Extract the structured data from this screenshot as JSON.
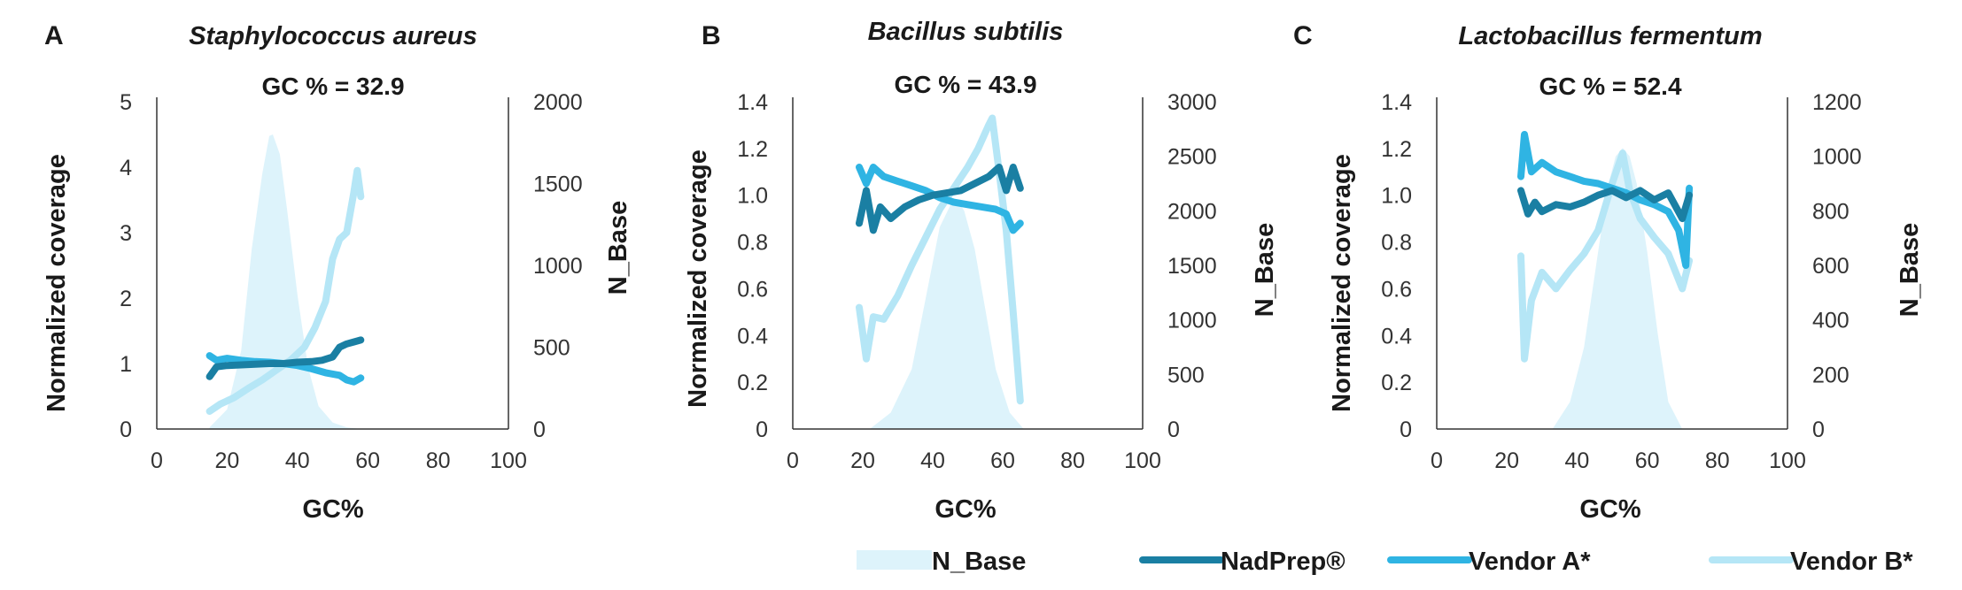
{
  "colors": {
    "n_base": "#ddf3fb",
    "nadprep": "#1a7fa3",
    "vendor_a": "#2fb4e3",
    "vendor_b": "#b5e6f6",
    "axis": "#333333"
  },
  "legend": [
    {
      "key": "n_base",
      "label": "N_Base",
      "style": "area"
    },
    {
      "key": "nadprep",
      "label": "NadPrep®",
      "style": "line"
    },
    {
      "key": "vendor_a",
      "label": "Vendor A*",
      "style": "line"
    },
    {
      "key": "vendor_b",
      "label": "Vendor B*",
      "style": "line"
    }
  ],
  "chart_data": [
    {
      "type": "line",
      "panel_letter": "A",
      "title": "Staphylococcus aureus",
      "subtitle": "GC % = 32.9",
      "xlabel": "GC%",
      "ylabel": "Normalized coverage",
      "y2label": "N_Base",
      "xlim": [
        0,
        100
      ],
      "xticks": [
        "0",
        "20",
        "40",
        "60",
        "80",
        "100"
      ],
      "ylim": [
        0,
        5
      ],
      "yticks": [
        "0",
        "1",
        "2",
        "3",
        "4",
        "5"
      ],
      "y2lim": [
        0,
        2000
      ],
      "y2ticks": [
        "0",
        "500",
        "1000",
        "1500",
        "2000"
      ],
      "grid": false,
      "series": [
        {
          "name": "N_Base",
          "axis": "right",
          "style": "area",
          "x": [
            15,
            20,
            24,
            27,
            30,
            32,
            33,
            35,
            37,
            40,
            43,
            46,
            50,
            54,
            58
          ],
          "y": [
            10,
            120,
            480,
            1100,
            1560,
            1790,
            1800,
            1680,
            1350,
            820,
            380,
            140,
            40,
            10,
            0
          ]
        },
        {
          "name": "NadPrep®",
          "axis": "left",
          "style": "line",
          "x": [
            15,
            17,
            20,
            24,
            28,
            32,
            36,
            40,
            44,
            47,
            50,
            52,
            54,
            56,
            58
          ],
          "y": [
            0.8,
            0.95,
            0.97,
            0.98,
            0.99,
            1.0,
            1.0,
            1.02,
            1.03,
            1.05,
            1.1,
            1.25,
            1.3,
            1.33,
            1.36
          ]
        },
        {
          "name": "Vendor A*",
          "axis": "left",
          "style": "line",
          "x": [
            15,
            17,
            20,
            24,
            28,
            32,
            36,
            40,
            44,
            48,
            52,
            54,
            56,
            58
          ],
          "y": [
            1.12,
            1.05,
            1.08,
            1.05,
            1.03,
            1.02,
            1.0,
            0.97,
            0.92,
            0.86,
            0.82,
            0.75,
            0.72,
            0.78
          ]
        },
        {
          "name": "Vendor B*",
          "axis": "left",
          "style": "line",
          "x": [
            15,
            18,
            22,
            26,
            30,
            34,
            38,
            42,
            45,
            48,
            50,
            52,
            54,
            56,
            57,
            58
          ],
          "y": [
            0.27,
            0.38,
            0.48,
            0.62,
            0.75,
            0.9,
            1.05,
            1.25,
            1.55,
            1.95,
            2.6,
            2.9,
            3.0,
            3.6,
            3.95,
            3.55
          ]
        }
      ]
    },
    {
      "type": "line",
      "panel_letter": "B",
      "title": "Bacillus subtilis",
      "subtitle": "GC % = 43.9",
      "xlabel": "GC%",
      "ylabel": "Normalized coverage",
      "y2label": "N_Base",
      "xlim": [
        0,
        100
      ],
      "xticks": [
        "0",
        "20",
        "40",
        "60",
        "80",
        "100"
      ],
      "ylim": [
        0,
        1.4
      ],
      "yticks": [
        "0",
        "0.2",
        "0.4",
        "0.6",
        "0.8",
        "1.0",
        "1.2",
        "1.4"
      ],
      "y2lim": [
        0,
        3000
      ],
      "y2ticks": [
        "0",
        "500",
        "1000",
        "1500",
        "2000",
        "2500",
        "3000"
      ],
      "grid": false,
      "series": [
        {
          "name": "N_Base",
          "axis": "right",
          "style": "area",
          "x": [
            22,
            28,
            34,
            38,
            42,
            45,
            47,
            49,
            52,
            55,
            58,
            62,
            66
          ],
          "y": [
            0,
            150,
            550,
            1200,
            1850,
            2050,
            2100,
            2000,
            1650,
            1100,
            550,
            150,
            0
          ]
        },
        {
          "name": "NadPrep®",
          "axis": "left",
          "style": "line",
          "x": [
            19,
            21,
            23,
            25,
            28,
            32,
            36,
            40,
            44,
            48,
            52,
            56,
            59,
            61,
            63,
            65
          ],
          "y": [
            0.88,
            1.02,
            0.85,
            0.95,
            0.9,
            0.95,
            0.98,
            1.0,
            1.01,
            1.02,
            1.05,
            1.08,
            1.12,
            1.02,
            1.12,
            1.03
          ]
        },
        {
          "name": "Vendor A*",
          "axis": "left",
          "style": "line",
          "x": [
            19,
            21,
            23,
            26,
            30,
            34,
            38,
            42,
            46,
            50,
            54,
            58,
            61,
            63,
            65
          ],
          "y": [
            1.12,
            1.05,
            1.12,
            1.08,
            1.06,
            1.04,
            1.02,
            0.99,
            0.97,
            0.96,
            0.95,
            0.94,
            0.92,
            0.85,
            0.88
          ]
        },
        {
          "name": "Vendor B*",
          "axis": "left",
          "style": "line",
          "x": [
            19,
            21,
            23,
            26,
            30,
            34,
            38,
            42,
            46,
            50,
            53,
            56,
            57,
            59,
            61,
            63,
            65
          ],
          "y": [
            0.52,
            0.3,
            0.48,
            0.47,
            0.57,
            0.7,
            0.82,
            0.94,
            1.03,
            1.12,
            1.2,
            1.3,
            1.33,
            1.1,
            0.85,
            0.5,
            0.12
          ]
        }
      ]
    },
    {
      "type": "line",
      "panel_letter": "C",
      "title": "Lactobacillus fermentum",
      "subtitle": "GC % = 52.4",
      "xlabel": "GC%",
      "ylabel": "Normalized coverage",
      "y2label": "N_Base",
      "xlim": [
        0,
        100
      ],
      "xticks": [
        "0",
        "20",
        "40",
        "60",
        "80",
        "100"
      ],
      "ylim": [
        0,
        1.4
      ],
      "yticks": [
        "0",
        "0.2",
        "0.4",
        "0.6",
        "0.8",
        "1.0",
        "1.2",
        "1.4"
      ],
      "y2lim": [
        0,
        1200
      ],
      "y2ticks": [
        "0",
        "200",
        "400",
        "600",
        "800",
        "1000",
        "1200"
      ],
      "grid": false,
      "series": [
        {
          "name": "N_Base",
          "axis": "right",
          "style": "area",
          "x": [
            33,
            38,
            42,
            46,
            49,
            51,
            53,
            55,
            57,
            60,
            63,
            66,
            70
          ],
          "y": [
            0,
            100,
            300,
            650,
            900,
            1000,
            1030,
            1000,
            900,
            650,
            350,
            100,
            0
          ]
        },
        {
          "name": "NadPrep®",
          "axis": "left",
          "style": "line",
          "x": [
            24,
            26,
            28,
            30,
            34,
            38,
            42,
            46,
            50,
            54,
            58,
            62,
            66,
            70,
            72
          ],
          "y": [
            1.02,
            0.92,
            0.97,
            0.93,
            0.96,
            0.95,
            0.97,
            1.0,
            1.02,
            0.99,
            1.02,
            0.98,
            1.01,
            0.9,
            1.0
          ]
        },
        {
          "name": "Vendor A*",
          "axis": "left",
          "style": "line",
          "x": [
            24,
            25,
            27,
            30,
            34,
            38,
            42,
            46,
            50,
            54,
            58,
            62,
            66,
            69,
            71,
            72
          ],
          "y": [
            1.08,
            1.26,
            1.1,
            1.14,
            1.1,
            1.08,
            1.06,
            1.05,
            1.03,
            1.01,
            0.98,
            0.96,
            0.93,
            0.85,
            0.7,
            1.03
          ]
        },
        {
          "name": "Vendor B*",
          "axis": "left",
          "style": "line",
          "x": [
            24,
            25,
            27,
            30,
            34,
            38,
            42,
            46,
            50,
            53,
            55,
            58,
            62,
            66,
            70,
            72
          ],
          "y": [
            0.74,
            0.3,
            0.55,
            0.67,
            0.6,
            0.68,
            0.75,
            0.85,
            1.05,
            1.18,
            1.02,
            0.9,
            0.82,
            0.75,
            0.6,
            0.72
          ]
        }
      ]
    }
  ]
}
